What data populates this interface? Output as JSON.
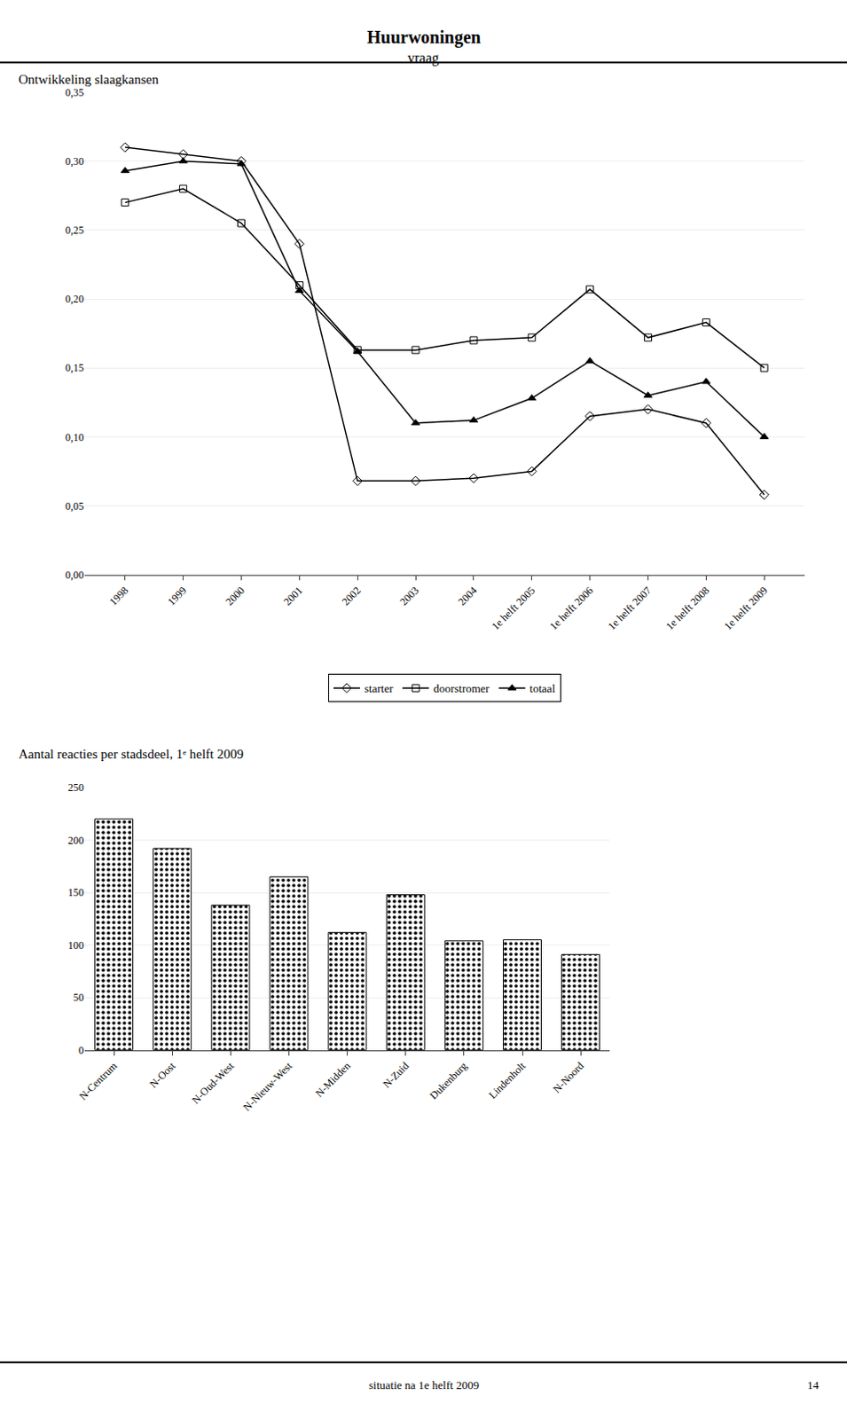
{
  "title": "Huurwoningen",
  "subtitle": "vraag",
  "annotations": [
    "situatie na 1e helft 2009",
    "14"
  ],
  "chart_data": [
    {
      "type": "line",
      "title": "Ontwikkeling slaagkansen",
      "categories": [
        "1998",
        "1999",
        "2000",
        "2001",
        "2002",
        "2003",
        "2004",
        "1e helft 2005",
        "1e helft 2006",
        "1e helft 2007",
        "1e helft 2008",
        "1e helft 2009"
      ],
      "series": [
        {
          "name": "starter",
          "color": "#000000",
          "marker": "diamond-open",
          "values": [
            0.31,
            0.305,
            0.3,
            0.24,
            0.068,
            0.068,
            0.07,
            0.075,
            0.115,
            0.12,
            0.11,
            0.058
          ]
        },
        {
          "name": "doorstromer",
          "color": "#000000",
          "marker": "square-open",
          "values": [
            0.27,
            0.28,
            0.255,
            0.21,
            0.163,
            0.163,
            0.17,
            0.172,
            0.207,
            0.172,
            0.183,
            0.15
          ]
        },
        {
          "name": "totaal",
          "color": "#000000",
          "marker": "triangle-up",
          "values": [
            0.293,
            0.3,
            0.298,
            0.206,
            0.162,
            0.11,
            0.112,
            0.128,
            0.155,
            0.13,
            0.14,
            0.1
          ]
        }
      ],
      "ylim": [
        0.0,
        0.35
      ],
      "yticks": [
        {
          "value": 0.0,
          "label": "0,00"
        },
        {
          "value": 0.05,
          "label": "0,05"
        },
        {
          "value": 0.1,
          "label": "0,10"
        },
        {
          "value": 0.15,
          "label": "0,15"
        },
        {
          "value": 0.2,
          "label": "0,20"
        },
        {
          "value": 0.25,
          "label": "0,25"
        },
        {
          "value": 0.3,
          "label": "0,30"
        },
        {
          "value": 0.35,
          "label": "0,35"
        }
      ],
      "grid": true,
      "legend": "bottom"
    },
    {
      "type": "bar",
      "title": "Aantal reacties per stadsdeel, 1ᵉ helft 2009",
      "categories": [
        "N-Centrum",
        "N-Oost",
        "N-Oud-West",
        "N-Nieuw-West",
        "N-Midden",
        "N-Zuid",
        "Dukenburg",
        "Lindenholt",
        "N-Noord"
      ],
      "values": [
        220,
        192,
        138,
        165,
        112,
        148,
        104,
        105,
        91
      ],
      "color": "#ffffff",
      "ylim": [
        0,
        250
      ],
      "yticks": [
        0,
        50,
        100,
        150,
        200,
        250
      ],
      "grid": true
    }
  ]
}
